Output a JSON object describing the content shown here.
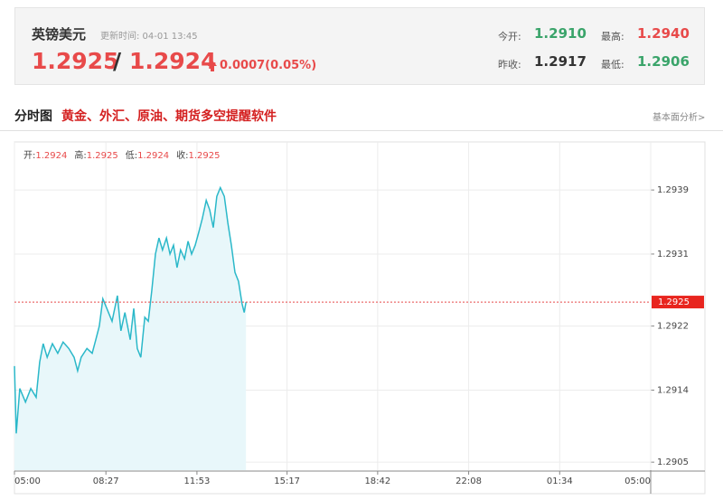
{
  "header": {
    "title": "英镑美元",
    "update_time": "更新时间: 04-01 13:45",
    "price_bid": "1.2925",
    "separator": "/",
    "price_ask": "1.2924",
    "change": "0.0007(0.05%)",
    "stats": [
      {
        "label": "今开:",
        "value": "1.2910"
      },
      {
        "label": "最高:",
        "value": "1.2940"
      },
      {
        "label": "昨收:",
        "value": "1.2917"
      },
      {
        "label": "最低:",
        "value": "1.2906"
      }
    ]
  },
  "section": {
    "title": "分时图",
    "promo": "黄金、外汇、原油、期货多空提醒软件",
    "link": "基本面分析>"
  },
  "chart_data": {
    "type": "line",
    "ohlc": [
      {
        "label": "开:",
        "value": 1.2924
      },
      {
        "label": "高:",
        "value": 1.2925
      },
      {
        "label": "低:",
        "value": 1.2924
      },
      {
        "label": "收:",
        "value": 1.2925
      }
    ],
    "x": [
      0,
      4,
      12,
      25,
      37,
      49,
      57,
      65,
      74,
      86,
      98,
      110,
      123,
      135,
      143,
      151,
      164,
      176,
      184,
      192,
      200,
      209,
      221,
      233,
      241,
      250,
      262,
      270,
      278,
      286,
      295,
      303,
      311,
      319,
      327,
      335,
      344,
      352,
      360,
      368,
      376,
      385,
      393,
      401,
      409,
      417,
      425,
      434,
      442,
      450,
      458,
      466,
      475,
      483,
      491,
      499,
      507,
      515,
      520,
      524
    ],
    "series": [
      {
        "name": "GBPUSD",
        "color": "#2bb8c9",
        "values": [
          1.2917,
          1.29086,
          1.29142,
          1.29125,
          1.29142,
          1.29131,
          1.29175,
          1.29198,
          1.29181,
          1.29198,
          1.29186,
          1.292,
          1.29192,
          1.29181,
          1.29164,
          1.29181,
          1.29192,
          1.29186,
          1.29203,
          1.2922,
          1.29254,
          1.29242,
          1.29226,
          1.29258,
          1.29214,
          1.29237,
          1.29203,
          1.29242,
          1.29192,
          1.29181,
          1.29231,
          1.29226,
          1.29265,
          1.2931,
          1.2933,
          1.29315,
          1.2933,
          1.2931,
          1.29321,
          1.29293,
          1.29315,
          1.29304,
          1.29326,
          1.2931,
          1.29321,
          1.29337,
          1.29354,
          1.29377,
          1.29365,
          1.29343,
          1.29382,
          1.29393,
          1.29382,
          1.29349,
          1.29321,
          1.29287,
          1.29276,
          1.29248,
          1.29237,
          1.2925
        ]
      }
    ],
    "current": 1.2925,
    "xlim": [
      0,
      1440
    ],
    "ylim": [
      1.2904,
      1.2945
    ],
    "xticks": [
      {
        "value": 0,
        "label": "05:00"
      },
      {
        "value": 207,
        "label": "08:27"
      },
      {
        "value": 413,
        "label": "11:53"
      },
      {
        "value": 617,
        "label": "15:17"
      },
      {
        "value": 822,
        "label": "18:42"
      },
      {
        "value": 1028,
        "label": "22:08"
      },
      {
        "value": 1234,
        "label": "01:34"
      },
      {
        "value": 1440,
        "label": "05:00"
      }
    ],
    "yticks": [
      1.2905,
      1.2914,
      1.2922,
      1.2931,
      1.2939
    ],
    "grid": true
  }
}
